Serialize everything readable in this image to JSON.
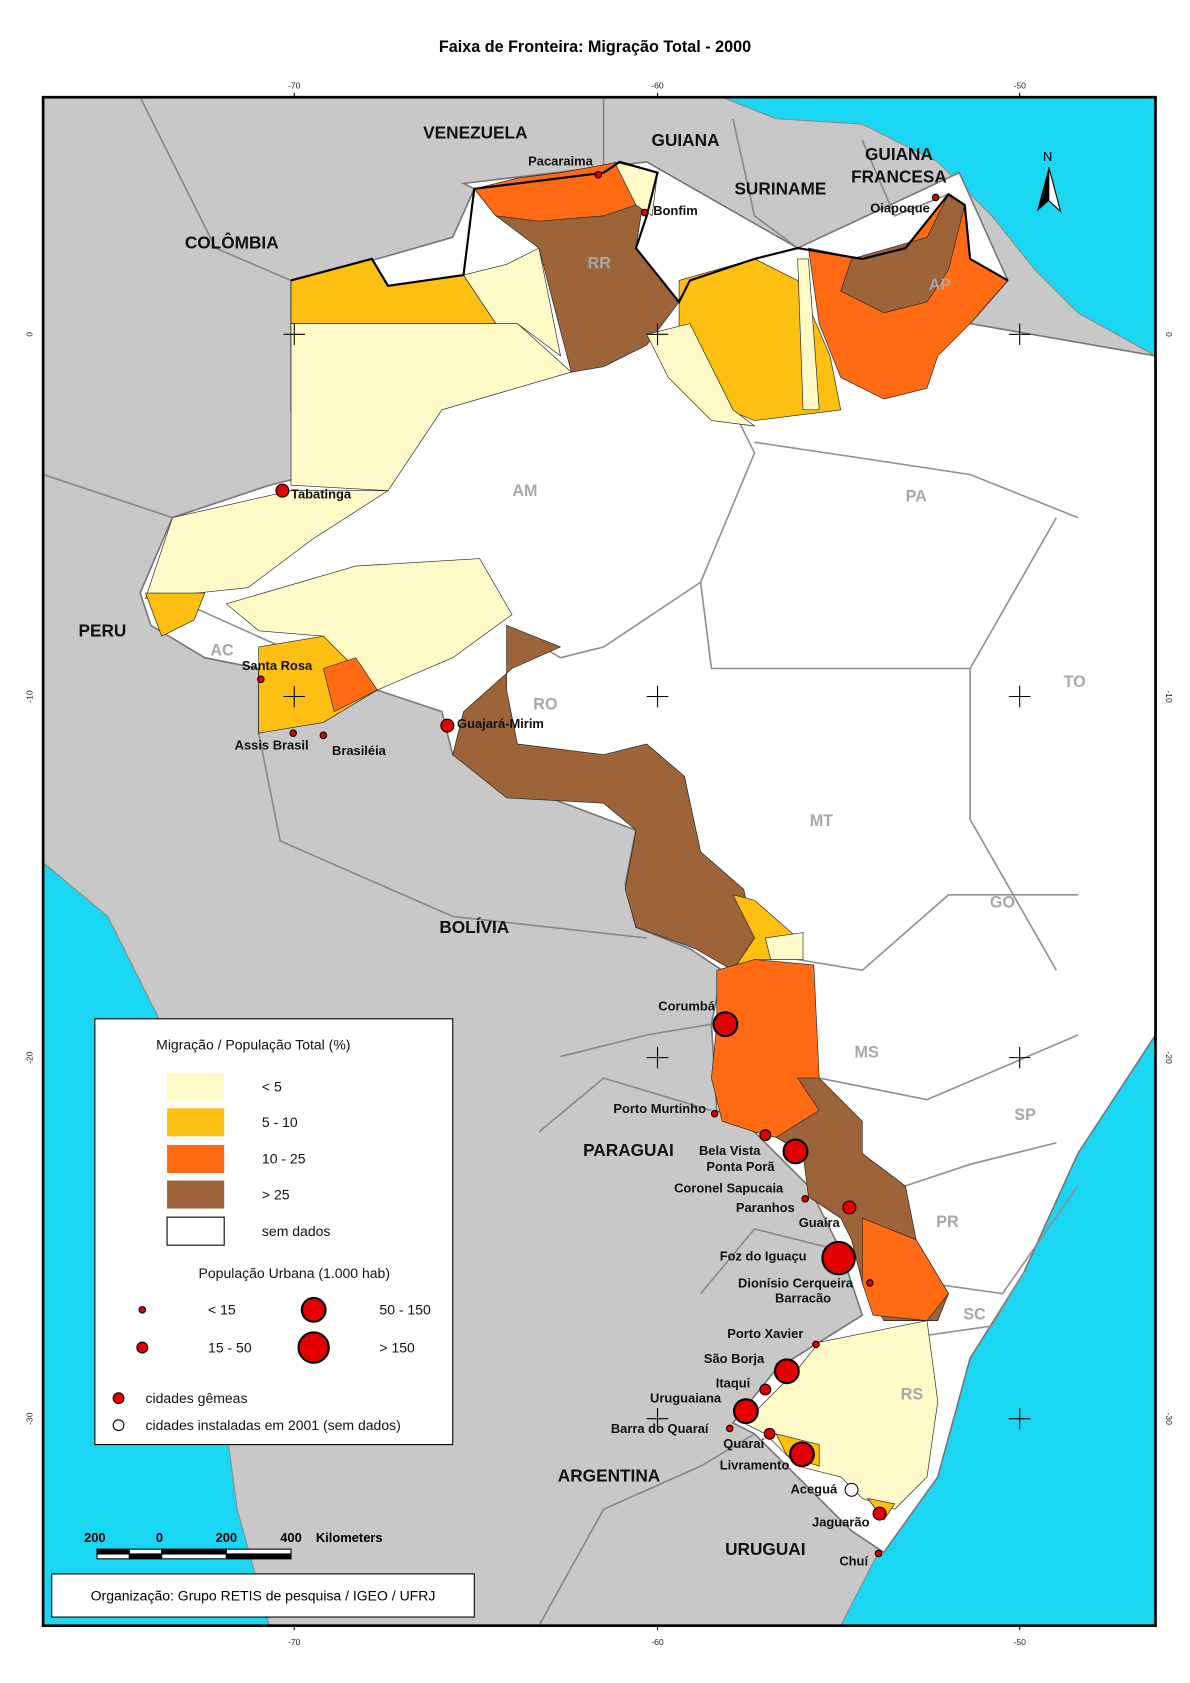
{
  "title": "Faixa de Fronteira: Migração Total - 2000",
  "graticule": {
    "longitudes": [
      -70,
      -60,
      -50
    ],
    "latitudes": [
      0,
      -10,
      -20,
      -30
    ]
  },
  "north_arrow": "N",
  "countries": [
    {
      "label": "VENEZUELA"
    },
    {
      "label": "GUIANA"
    },
    {
      "label": "SURINAME"
    },
    {
      "label": [
        "GUIANA",
        "FRANCESA"
      ]
    },
    {
      "label": "COLÔMBIA"
    },
    {
      "label": "PERU"
    },
    {
      "label": "BOLÍVIA"
    },
    {
      "label": "PARAGUAI"
    },
    {
      "label": "ARGENTINA"
    },
    {
      "label": "URUGUAI"
    }
  ],
  "states": [
    "RR",
    "AP",
    "AM",
    "PA",
    "AC",
    "RO",
    "TO",
    "MT",
    "GO",
    "MS",
    "SP",
    "PR",
    "SC",
    "RS"
  ],
  "cities": [
    "Pacaraima",
    "Bonfim",
    "Oiapoque",
    "Tabatinga",
    "Santa Rosa",
    "Assis Brasil",
    "Brasiléia",
    "Guajará-Mirim",
    "Corumbá",
    "Porto Murtinho",
    "Bela Vista",
    "Ponta Porã",
    "Coronel Sapucaia",
    "Paranhos",
    "Guaíra",
    "Foz do Iguaçu",
    "Dionísio Cerqueira",
    "Barracão",
    "Porto Xavier",
    "São Borja",
    "Itaqui",
    "Uruguaiana",
    "Barra do Quaraí",
    "Quaraí",
    "Livramento",
    "Aceguá",
    "Jaguarão",
    "Chuí"
  ],
  "legend": {
    "migration_title": "Migração / População Total (%)",
    "migration_classes": [
      "< 5",
      "5 - 10",
      "10 - 25",
      "> 25",
      "sem dados"
    ],
    "population_title": "População Urbana (1.000 hab)",
    "population_classes": [
      "< 15",
      "15 - 50",
      "50 - 150",
      "> 150"
    ],
    "symbols": [
      "cidades gêmeas",
      "cidades instaladas em 2001 (sem dados)"
    ]
  },
  "scale_bar": {
    "labels": [
      "200",
      "0",
      "200",
      "400"
    ],
    "unit": "Kilometers"
  },
  "credit": "Organização: Grupo RETIS de pesquisa / IGEO / UFRJ"
}
